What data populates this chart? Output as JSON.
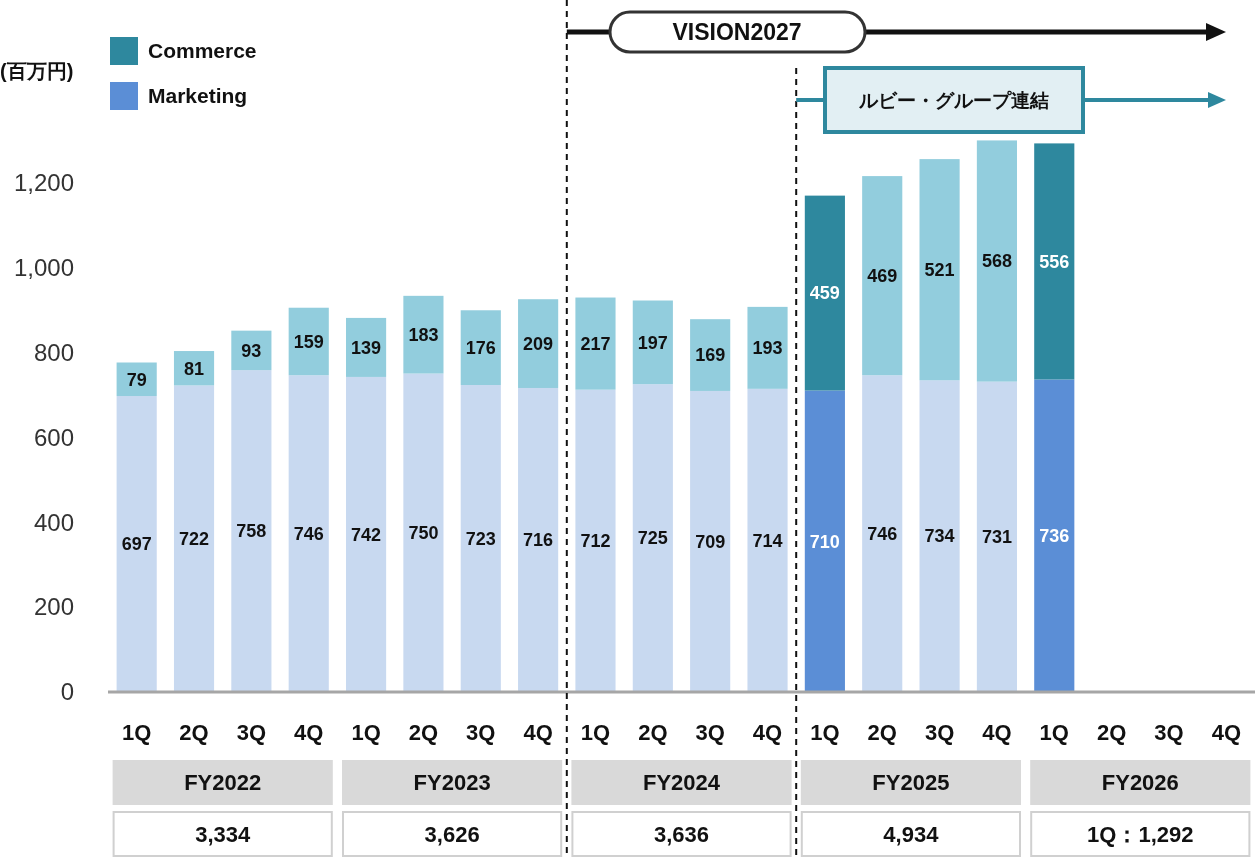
{
  "chart_data": {
    "type": "bar",
    "stacked": true,
    "ylabel": "(百万円)",
    "legend": "top left",
    "data_labels": true,
    "ylim": [
      0,
      1300
    ],
    "yticks": [
      0,
      200,
      400,
      600,
      800,
      {
        "value": 1000,
        "label": "1,000"
      },
      {
        "value": 1200,
        "label": "1,200"
      }
    ],
    "categories": [
      "1Q",
      "2Q",
      "3Q",
      "4Q",
      "1Q",
      "2Q",
      "3Q",
      "4Q",
      "1Q",
      "2Q",
      "3Q",
      "4Q",
      "1Q",
      "2Q",
      "3Q",
      "4Q",
      "1Q",
      "2Q",
      "3Q",
      "4Q"
    ],
    "series": [
      {
        "name": "Marketing",
        "color": "#5b8ed6",
        "colors": [
          "#c8d9f0",
          "#c8d9f0",
          "#c8d9f0",
          "#c8d9f0",
          "#c8d9f0",
          "#c8d9f0",
          "#c8d9f0",
          "#c8d9f0",
          "#c8d9f0",
          "#c8d9f0",
          "#c8d9f0",
          "#c8d9f0",
          "#5b8ed6",
          "#c8d9f0",
          "#c8d9f0",
          "#c8d9f0",
          "#5b8ed6",
          null,
          null,
          null
        ],
        "values": [
          697,
          722,
          758,
          746,
          742,
          750,
          723,
          716,
          712,
          725,
          709,
          714,
          710,
          746,
          734,
          731,
          736,
          null,
          null,
          null
        ]
      },
      {
        "name": "Commerce",
        "color": "#2e889e",
        "colors": [
          "#92cddd",
          "#92cddd",
          "#92cddd",
          "#92cddd",
          "#92cddd",
          "#92cddd",
          "#92cddd",
          "#92cddd",
          "#92cddd",
          "#92cddd",
          "#92cddd",
          "#92cddd",
          "#2e889e",
          "#92cddd",
          "#92cddd",
          "#92cddd",
          "#2e889e",
          null,
          null,
          null
        ],
        "values": [
          79,
          81,
          93,
          159,
          139,
          183,
          176,
          209,
          217,
          197,
          169,
          193,
          459,
          469,
          521,
          568,
          556,
          null,
          null,
          null
        ]
      }
    ],
    "annotations": [
      "FY2022",
      "FY2023",
      "FY2024",
      "FY2025",
      "FY2026",
      "3,334",
      "3,626",
      "3,636",
      "4,934",
      "1Q：1,292",
      "VISION2027",
      "ルビー・グループ連結"
    ]
  }
}
